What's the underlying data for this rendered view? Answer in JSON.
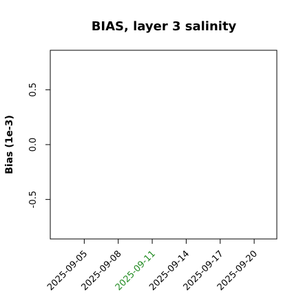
{
  "chart_data": {
    "type": "line",
    "title": "BIAS, layer 3 salinity",
    "ylabel": "Bias (1e-3)",
    "series": [],
    "xlim": [
      "2025-09-02",
      "2025-09-22"
    ],
    "xticks": [
      "2025-09-05",
      "2025-09-08",
      "2025-09-11",
      "2025-09-14",
      "2025-09-17",
      "2025-09-20"
    ],
    "highlight_tick": 2,
    "highlight_color": "#228b22",
    "ylim": [
      -0.86,
      0.86
    ],
    "yticks": [
      -0.5,
      {
        "value": 0,
        "label": "0.0"
      },
      0.5
    ]
  }
}
